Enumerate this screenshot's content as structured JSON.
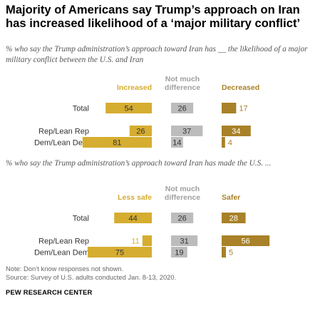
{
  "title": "Majority of Americans say Trump’s approach on Iran has increased likelihood of a ‘major military conflict’",
  "colors": {
    "dark_gold": "#a88128",
    "light_gold": "#d5ad30",
    "gray": "#bcbcbc",
    "dark_label": "#a88128",
    "light_label": "#d5ad30",
    "gray_label": "#a0a0a0"
  },
  "chart_data": [
    {
      "type": "bar",
      "subtitle": "% who say the Trump administration’s approach toward Iran has __ the likelihood of a major military conflict between the U.S. and Iran",
      "categories": [
        "Total",
        "Rep/Lean Rep",
        "Dem/Lean Dem"
      ],
      "series": [
        {
          "name": "Increased",
          "values": [
            54,
            26,
            81
          ]
        },
        {
          "name": "Not much difference",
          "values": [
            26,
            37,
            14
          ]
        },
        {
          "name": "Decreased",
          "values": [
            17,
            34,
            4
          ]
        }
      ]
    },
    {
      "type": "bar",
      "subtitle": "% who say the Trump administration’s approach toward Iran has made the U.S. ...",
      "categories": [
        "Total",
        "Rep/Lean Rep",
        "Dem/Lean Dem"
      ],
      "series": [
        {
          "name": "Less safe",
          "values": [
            44,
            11,
            75
          ]
        },
        {
          "name": "Not much difference",
          "values": [
            26,
            31,
            19
          ]
        },
        {
          "name": "Safer",
          "values": [
            28,
            56,
            5
          ]
        }
      ]
    }
  ],
  "footer": {
    "note": "Note: Don’t know responses not shown.",
    "source": "Source: Survey of U.S. adults conducted Jan. 8-13, 2020.",
    "brand": "PEW RESEARCH CENTER"
  }
}
